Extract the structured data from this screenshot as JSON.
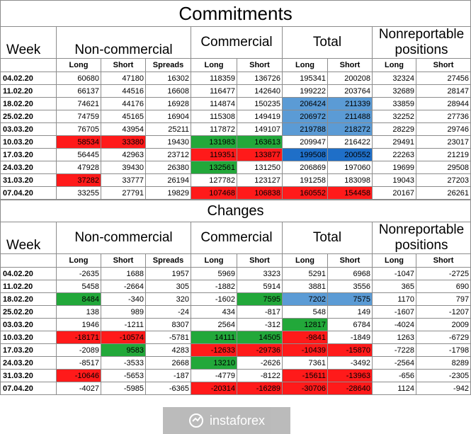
{
  "commitments": {
    "title": "Commitments",
    "header": {
      "week": "Week",
      "noncommercial": "Non-commercial",
      "commercial": "Commercial",
      "total": "Total",
      "nonreportable": "Nonreportable positions",
      "cols": [
        "Long",
        "Short",
        "Spreads",
        "Long",
        "Short",
        "Long",
        "Short",
        "Long",
        "Short"
      ]
    },
    "rows": [
      {
        "week": "04.02.20",
        "cells": [
          "60680",
          "47180",
          "16302",
          "118359",
          "136726",
          "195341",
          "200208",
          "32324",
          "27456"
        ],
        "hl": [
          "",
          "",
          "",
          "",
          "",
          "",
          "",
          "",
          ""
        ]
      },
      {
        "week": "11.02.20",
        "cells": [
          "66137",
          "44516",
          "16608",
          "116477",
          "142640",
          "199222",
          "203764",
          "32689",
          "28147"
        ],
        "hl": [
          "",
          "",
          "",
          "",
          "",
          "",
          "",
          "",
          ""
        ]
      },
      {
        "week": "18.02.20",
        "cells": [
          "74621",
          "44176",
          "16928",
          "114874",
          "150235",
          "206424",
          "211339",
          "33859",
          "28944"
        ],
        "hl": [
          "",
          "",
          "",
          "",
          "",
          "b",
          "b",
          "",
          ""
        ]
      },
      {
        "week": "25.02.20",
        "cells": [
          "74759",
          "45165",
          "16904",
          "115308",
          "149419",
          "206972",
          "211488",
          "32252",
          "27736"
        ],
        "hl": [
          "",
          "",
          "",
          "",
          "",
          "b",
          "b",
          "",
          ""
        ]
      },
      {
        "week": "03.03.20",
        "cells": [
          "76705",
          "43954",
          "25211",
          "117872",
          "149107",
          "219788",
          "218272",
          "28229",
          "29746"
        ],
        "hl": [
          "",
          "",
          "",
          "",
          "",
          "b",
          "b",
          "",
          ""
        ]
      },
      {
        "week": "10.03.20",
        "cells": [
          "58534",
          "33380",
          "19430",
          "131983",
          "163613",
          "209947",
          "216422",
          "29491",
          "23017"
        ],
        "hl": [
          "r",
          "r",
          "",
          "g",
          "g",
          "",
          "",
          "",
          ""
        ]
      },
      {
        "week": "17.03.20",
        "cells": [
          "56445",
          "42963",
          "23712",
          "119351",
          "133877",
          "199508",
          "200552",
          "22263",
          "21219"
        ],
        "hl": [
          "",
          "",
          "",
          "r",
          "r",
          "db",
          "db",
          "",
          ""
        ]
      },
      {
        "week": "24.03.20",
        "cells": [
          "47928",
          "39430",
          "26380",
          "132561",
          "131250",
          "206869",
          "197060",
          "19699",
          "29508"
        ],
        "hl": [
          "",
          "",
          "",
          "g",
          "",
          "",
          "",
          "",
          ""
        ]
      },
      {
        "week": "31.03.20",
        "cells": [
          "37282",
          "33777",
          "26194",
          "127782",
          "123127",
          "191258",
          "183098",
          "19043",
          "27203"
        ],
        "hl": [
          "r",
          "",
          "",
          "",
          "",
          "",
          "",
          "",
          ""
        ]
      },
      {
        "week": "07.04.20",
        "cells": [
          "33255",
          "27791",
          "19829",
          "107468",
          "106838",
          "160552",
          "154458",
          "20167",
          "26261"
        ],
        "hl": [
          "",
          "",
          "",
          "r",
          "r",
          "r",
          "r",
          "",
          ""
        ]
      }
    ]
  },
  "changes": {
    "title": "Changes",
    "header": {
      "week": "Week",
      "noncommercial": "Non-commercial",
      "commercial": "Commercial",
      "total": "Total",
      "nonreportable": "Nonreportable positions",
      "cols": [
        "Long",
        "Short",
        "Spreads",
        "Long",
        "Short",
        "Long",
        "Short",
        "Long",
        "Short"
      ]
    },
    "rows": [
      {
        "week": "04.02.20",
        "cells": [
          "-2635",
          "1688",
          "1957",
          "5969",
          "3323",
          "5291",
          "6968",
          "-1047",
          "-2725"
        ],
        "hl": [
          "",
          "",
          "",
          "",
          "",
          "",
          "",
          "",
          ""
        ]
      },
      {
        "week": "11.02.20",
        "cells": [
          "5458",
          "-2664",
          "305",
          "-1882",
          "5914",
          "3881",
          "3556",
          "365",
          "690"
        ],
        "hl": [
          "",
          "",
          "",
          "",
          "",
          "",
          "",
          "",
          ""
        ]
      },
      {
        "week": "18.02.20",
        "cells": [
          "8484",
          "-340",
          "320",
          "-1602",
          "7595",
          "7202",
          "7575",
          "1170",
          "797"
        ],
        "hl": [
          "g",
          "",
          "",
          "",
          "g",
          "b",
          "b",
          "",
          ""
        ]
      },
      {
        "week": "25.02.20",
        "cells": [
          "138",
          "989",
          "-24",
          "434",
          "-817",
          "548",
          "149",
          "-1607",
          "-1207"
        ],
        "hl": [
          "",
          "",
          "",
          "",
          "",
          "",
          "",
          "",
          ""
        ]
      },
      {
        "week": "03.03.20",
        "cells": [
          "1946",
          "-1211",
          "8307",
          "2564",
          "-312",
          "12817",
          "6784",
          "-4024",
          "2009"
        ],
        "hl": [
          "",
          "",
          "",
          "",
          "",
          "g",
          "",
          "",
          ""
        ]
      },
      {
        "week": "10.03.20",
        "cells": [
          "-18171",
          "-10574",
          "-5781",
          "14111",
          "14505",
          "-9841",
          "-1849",
          "1263",
          "-6729"
        ],
        "hl": [
          "r",
          "r",
          "",
          "g",
          "g",
          "r",
          "",
          "",
          ""
        ]
      },
      {
        "week": "17.03.20",
        "cells": [
          "-2089",
          "9583",
          "4283",
          "-12633",
          "-29736",
          "-10439",
          "-15870",
          "-7228",
          "-1798"
        ],
        "hl": [
          "",
          "g",
          "",
          "r",
          "r",
          "r",
          "r",
          "",
          ""
        ]
      },
      {
        "week": "24.03.20",
        "cells": [
          "-8517",
          "-3533",
          "2668",
          "13210",
          "-2626",
          "7361",
          "-3492",
          "-2564",
          "8289"
        ],
        "hl": [
          "",
          "",
          "",
          "g",
          "",
          "",
          "",
          "",
          ""
        ]
      },
      {
        "week": "31.03.20",
        "cells": [
          "-10646",
          "-5653",
          "-187",
          "-4779",
          "-8122",
          "-15611",
          "-13963",
          "-656",
          "-2305"
        ],
        "hl": [
          "r",
          "",
          "",
          "",
          "",
          "r",
          "r",
          "",
          ""
        ]
      },
      {
        "week": "07.04.20",
        "cells": [
          "-4027",
          "-5985",
          "-6365",
          "-20314",
          "-16289",
          "-30706",
          "-28640",
          "1124",
          "-942"
        ],
        "hl": [
          "",
          "",
          "",
          "r",
          "r",
          "r",
          "r",
          "",
          ""
        ]
      }
    ]
  },
  "watermark": {
    "text": "instaforex"
  }
}
